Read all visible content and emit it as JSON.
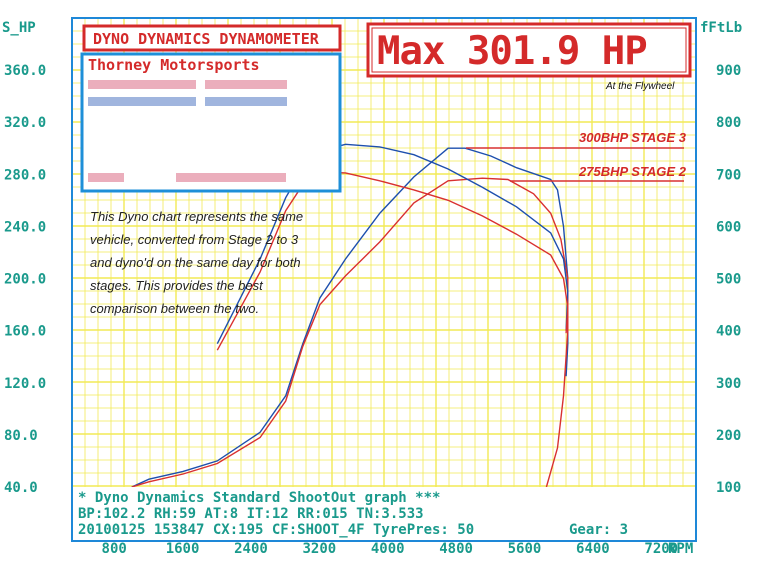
{
  "header": {
    "title_box": "DYNO DYNAMICS DYNAMOMETER",
    "max_label": "Max 301.9 HP",
    "max_sub": "At the Flywheel",
    "customer": "Thorney Motorsports"
  },
  "axes": {
    "left_unit": "S_HP",
    "right_unit": "fFtLb",
    "x_unit": "RPM"
  },
  "note_lines": [
    "This Dyno chart represents the same",
    "vehicle, converted from Stage 2 to 3",
    "and dyno'd on the same day for both",
    "stages. This provides the best",
    "comparison between the two."
  ],
  "footer": {
    "line1": "* Dyno Dynamics Standard ShootOut graph ***",
    "line2": "BP:102.2 RH:59 AT:8  IT:12  RR:015 TN:3.533",
    "line3": "20100125 153847 CX:195 CF:SHOOT_4F TyrePres: 50",
    "gear": "Gear: 3"
  },
  "colors": {
    "grid": "#f2ea55",
    "frame": "#1e88d8",
    "accent_red": "#d42a2a",
    "axis_text": "#1a9a8c",
    "stage3": "#1d4fae",
    "stage2": "#d93030"
  },
  "chart_data": {
    "type": "line",
    "x_label": "RPM",
    "x_ticks": [
      "800",
      "1600",
      "2400",
      "3200",
      "4000",
      "4800",
      "5600",
      "6400",
      "7200"
    ],
    "y_left_label": "S_HP",
    "y_left_ticks": [
      "360.0",
      "320.0",
      "280.0",
      "240.0",
      "200.0",
      "160.0",
      "120.0",
      "80.0",
      "40.0"
    ],
    "y_left_range": [
      40,
      360
    ],
    "y_right_label": "fFtLb",
    "y_right_ticks": [
      "900",
      "800",
      "700",
      "600",
      "500",
      "400",
      "300",
      "200",
      "100"
    ],
    "y_right_range": [
      100,
      900
    ],
    "x_range": [
      400,
      7700
    ],
    "grid": true,
    "series": [
      {
        "name": "300BHP STAGE 3",
        "kind": "power",
        "color": "#1d4fae",
        "points": [
          [
            1100,
            40
          ],
          [
            1300,
            46
          ],
          [
            1700,
            52
          ],
          [
            2100,
            60
          ],
          [
            2600,
            82
          ],
          [
            2900,
            110
          ],
          [
            3100,
            150
          ],
          [
            3300,
            185
          ],
          [
            3600,
            215
          ],
          [
            4000,
            250
          ],
          [
            4400,
            278
          ],
          [
            4800,
            300
          ],
          [
            5000,
            300
          ],
          [
            5300,
            294
          ],
          [
            5600,
            285
          ],
          [
            6000,
            276
          ],
          [
            6080,
            268
          ],
          [
            6150,
            240
          ],
          [
            6200,
            200
          ],
          [
            6200,
            150
          ],
          [
            6180,
            125
          ]
        ]
      },
      {
        "name": "275BHP STAGE 2",
        "kind": "power",
        "color": "#d93030",
        "points": [
          [
            1100,
            40
          ],
          [
            1300,
            44
          ],
          [
            1700,
            50
          ],
          [
            2100,
            58
          ],
          [
            2600,
            78
          ],
          [
            2900,
            106
          ],
          [
            3100,
            148
          ],
          [
            3300,
            180
          ],
          [
            3600,
            202
          ],
          [
            4000,
            228
          ],
          [
            4400,
            258
          ],
          [
            4800,
            275
          ],
          [
            5200,
            277
          ],
          [
            5500,
            276
          ],
          [
            5800,
            265
          ],
          [
            6000,
            250
          ],
          [
            6120,
            230
          ],
          [
            6200,
            200
          ],
          [
            6200,
            160
          ],
          [
            6150,
            110
          ],
          [
            6080,
            70
          ],
          [
            5950,
            40
          ]
        ]
      },
      {
        "name": "300BHP STAGE 3 torque",
        "kind": "torque",
        "color": "#1d4fae",
        "points": [
          [
            2100,
            150
          ],
          [
            2600,
            215
          ],
          [
            2900,
            262
          ],
          [
            3200,
            296
          ],
          [
            3600,
            303
          ],
          [
            4000,
            301
          ],
          [
            4400,
            295
          ],
          [
            4800,
            284
          ],
          [
            5200,
            270
          ],
          [
            5600,
            255
          ],
          [
            6000,
            235
          ],
          [
            6150,
            215
          ],
          [
            6200,
            190
          ],
          [
            6180,
            160
          ]
        ]
      },
      {
        "name": "275BHP STAGE 2 torque",
        "kind": "torque",
        "color": "#d93030",
        "points": [
          [
            2100,
            145
          ],
          [
            2600,
            205
          ],
          [
            2900,
            252
          ],
          [
            3200,
            282
          ],
          [
            3600,
            281
          ],
          [
            4000,
            275
          ],
          [
            4400,
            268
          ],
          [
            4800,
            260
          ],
          [
            5200,
            248
          ],
          [
            5600,
            234
          ],
          [
            6000,
            218
          ],
          [
            6150,
            200
          ],
          [
            6200,
            178
          ],
          [
            6180,
            158
          ]
        ]
      }
    ]
  }
}
